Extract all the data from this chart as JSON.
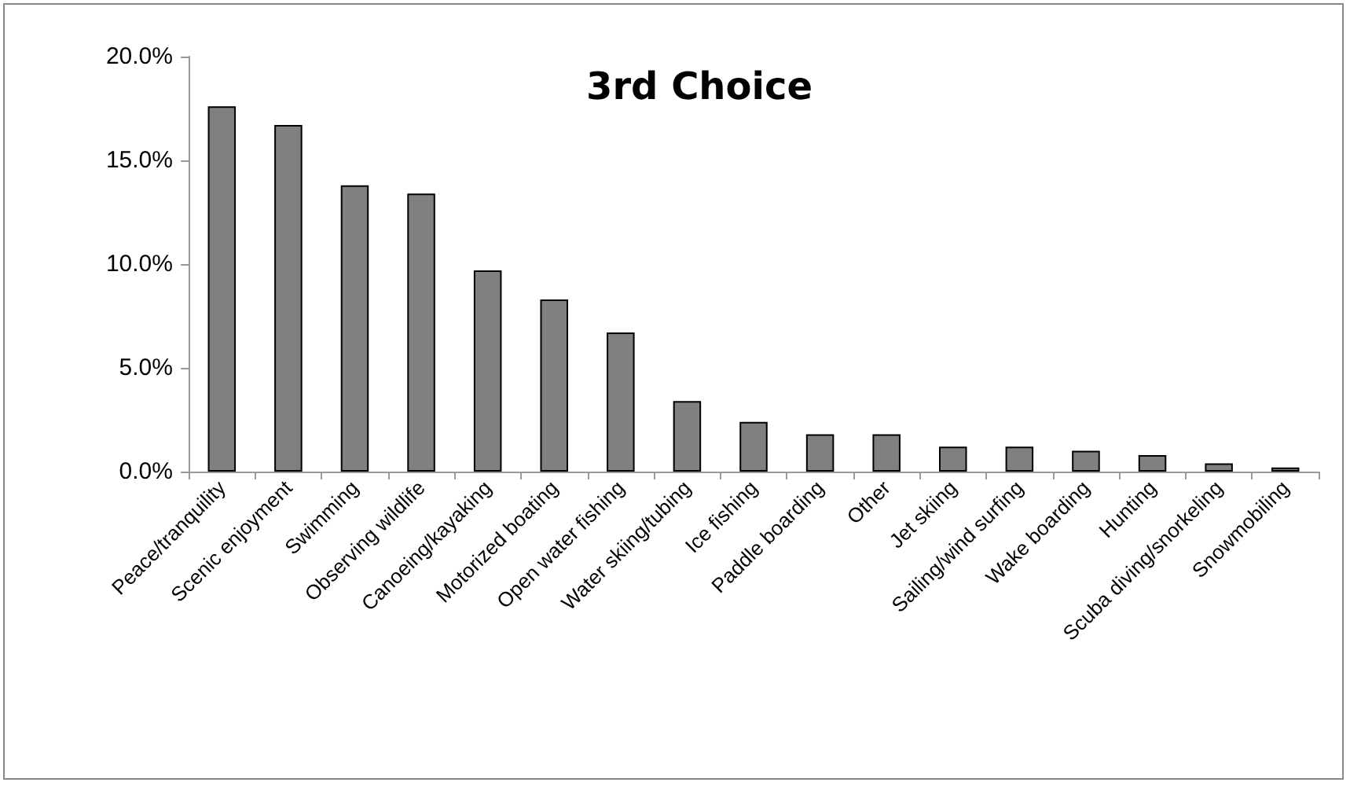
{
  "chart_data": {
    "type": "bar",
    "title": "3rd Choice",
    "categories": [
      "Peace/tranquility",
      "Scenic enjoyment",
      "Swimming",
      "Observing wildlife",
      "Canoeing/kayaking",
      "Motorized boating",
      "Open water fishing",
      "Water skiing/tubing",
      "Ice fishing",
      "Paddle boarding",
      "Other",
      "Jet skiing",
      "Sailing/wind surfing",
      "Wake boarding",
      "Hunting",
      "Scuba diving/snorkeling",
      "Snowmobiling"
    ],
    "values": [
      17.6,
      16.7,
      13.8,
      13.4,
      9.7,
      8.3,
      6.7,
      3.4,
      2.4,
      1.8,
      1.8,
      1.2,
      1.2,
      1.0,
      0.8,
      0.4,
      0.2
    ],
    "color": "#808080",
    "ylim": [
      0,
      20
    ],
    "yticks": [
      {
        "value": 0,
        "label": "0.0%"
      },
      {
        "value": 5,
        "label": "5.0%"
      },
      {
        "value": 10,
        "label": "10.0%"
      },
      {
        "value": 15,
        "label": "15.0%"
      },
      {
        "value": 20,
        "label": "20.0%"
      }
    ],
    "grid": false
  }
}
